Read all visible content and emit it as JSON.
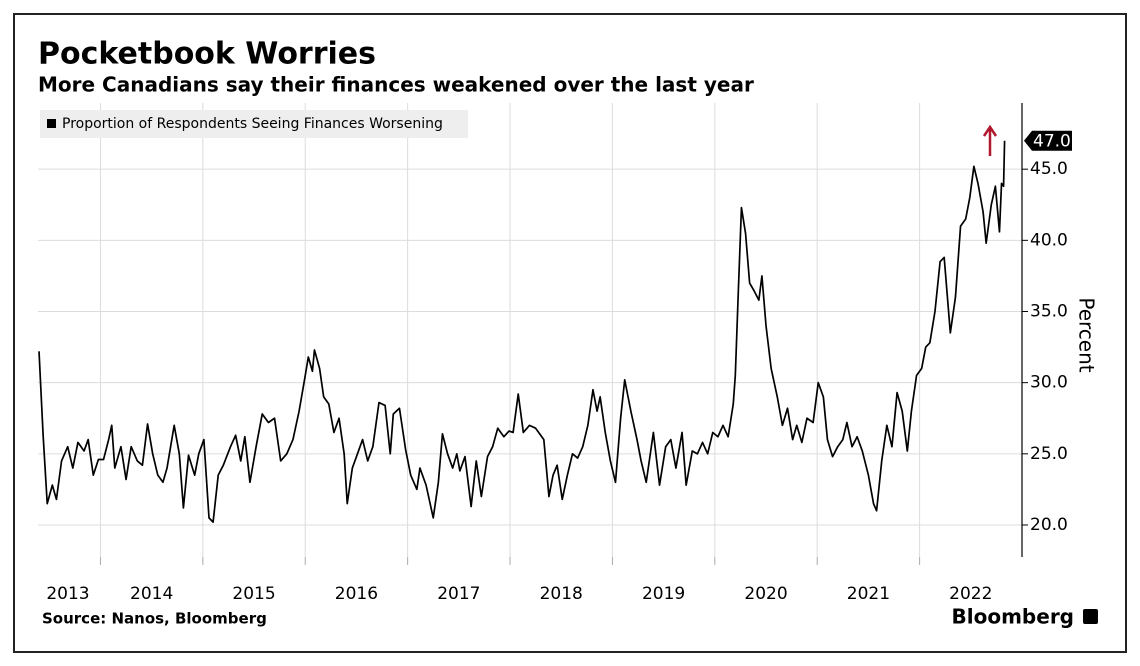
{
  "chart_data": {
    "type": "line",
    "title": "Pocketbook Worries",
    "subtitle": "More Canadians say their finances weakened over the last year",
    "y_label": "Percent",
    "source": "Source: Nanos, Bloomberg",
    "brand": "Bloomberg",
    "x": [
      2013.4,
      2013.44,
      2013.48,
      2013.53,
      2013.57,
      2013.62,
      2013.68,
      2013.73,
      2013.78,
      2013.84,
      2013.88,
      2013.93,
      2013.98,
      2014.03,
      2014.08,
      2014.11,
      2014.14,
      2014.2,
      2014.25,
      2014.3,
      2014.36,
      2014.41,
      2014.46,
      2014.51,
      2014.56,
      2014.61,
      2014.65,
      2014.72,
      2014.77,
      2014.81,
      2014.86,
      2014.92,
      2014.96,
      2015.01,
      2015.06,
      2015.1,
      2015.15,
      2015.2,
      2015.27,
      2015.32,
      2015.37,
      2015.41,
      2015.46,
      2015.52,
      2015.58,
      2015.64,
      2015.7,
      2015.76,
      2015.82,
      2015.88,
      2015.94,
      2016.0,
      2016.03,
      2016.07,
      2016.09,
      2016.14,
      2016.18,
      2016.23,
      2016.28,
      2016.33,
      2016.38,
      2016.41,
      2016.46,
      2016.51,
      2016.56,
      2016.61,
      2016.66,
      2016.72,
      2016.78,
      2016.83,
      2016.86,
      2016.92,
      2016.98,
      2017.03,
      2017.09,
      2017.12,
      2017.18,
      2017.25,
      2017.3,
      2017.34,
      2017.39,
      2017.44,
      2017.48,
      2017.51,
      2017.56,
      2017.62,
      2017.67,
      2017.72,
      2017.78,
      2017.83,
      2017.88,
      2017.94,
      2017.99,
      2018.03,
      2018.08,
      2018.13,
      2018.19,
      2018.25,
      2018.33,
      2018.38,
      2018.42,
      2018.46,
      2018.51,
      2018.56,
      2018.61,
      2018.66,
      2018.71,
      2018.76,
      2018.81,
      2018.85,
      2018.88,
      2018.93,
      2018.98,
      2019.03,
      2019.08,
      2019.12,
      2019.18,
      2019.24,
      2019.28,
      2019.33,
      2019.4,
      2019.46,
      2019.52,
      2019.57,
      2019.62,
      2019.68,
      2019.72,
      2019.78,
      2019.83,
      2019.88,
      2019.93,
      2019.98,
      2020.03,
      2020.08,
      2020.13,
      2020.18,
      2020.2,
      2020.23,
      2020.26,
      2020.3,
      2020.34,
      2020.38,
      2020.43,
      2020.46,
      2020.5,
      2020.55,
      2020.61,
      2020.66,
      2020.71,
      2020.76,
      2020.8,
      2020.85,
      2020.9,
      2020.96,
      2021.01,
      2021.06,
      2021.1,
      2021.15,
      2021.2,
      2021.25,
      2021.29,
      2021.34,
      2021.39,
      2021.44,
      2021.5,
      2021.55,
      2021.58,
      2021.63,
      2021.68,
      2021.73,
      2021.78,
      2021.83,
      2021.88,
      2021.92,
      2021.97,
      2022.02,
      2022.06,
      2022.1,
      2022.15,
      2022.2,
      2022.24,
      2022.3,
      2022.35,
      2022.4,
      2022.45,
      2022.49,
      2022.53,
      2022.57,
      2022.62,
      2022.65,
      2022.7,
      2022.74,
      2022.78,
      2022.8,
      2022.82,
      2022.83
    ],
    "series": [
      {
        "name": "Proportion of Respondents Seeing Finances Worsening",
        "color": "#000000",
        "values": [
          32.2,
          26.3,
          21.5,
          22.8,
          21.8,
          24.5,
          25.5,
          24.0,
          25.8,
          25.2,
          26.0,
          23.5,
          24.6,
          24.6,
          26.0,
          27.0,
          24.0,
          25.5,
          23.2,
          25.5,
          24.5,
          24.2,
          27.1,
          25.0,
          23.5,
          23.0,
          24.0,
          27.0,
          25.0,
          21.2,
          24.9,
          23.5,
          25.0,
          26.0,
          20.5,
          20.2,
          23.5,
          24.2,
          25.5,
          26.3,
          24.5,
          26.2,
          23.0,
          25.5,
          27.8,
          27.2,
          27.5,
          24.5,
          25.0,
          26.0,
          28.0,
          30.5,
          31.8,
          30.8,
          32.3,
          31.0,
          29.0,
          28.5,
          26.5,
          27.5,
          25.0,
          21.5,
          24.0,
          25.0,
          26.0,
          24.5,
          25.5,
          28.6,
          28.4,
          25.0,
          27.8,
          28.2,
          25.3,
          23.5,
          22.5,
          24.0,
          22.8,
          20.5,
          23.0,
          26.4,
          25.0,
          24.0,
          25.0,
          23.8,
          24.8,
          21.3,
          24.5,
          22.0,
          24.8,
          25.5,
          26.8,
          26.2,
          26.6,
          26.5,
          29.2,
          26.5,
          27.0,
          26.8,
          26.0,
          22.0,
          23.5,
          24.2,
          21.8,
          23.5,
          25.0,
          24.7,
          25.5,
          27.0,
          29.5,
          28.0,
          29.0,
          26.5,
          24.5,
          23.0,
          27.5,
          30.2,
          28.0,
          26.0,
          24.5,
          23.0,
          26.5,
          22.8,
          25.5,
          26.0,
          24.0,
          26.5,
          22.8,
          25.2,
          25.0,
          25.8,
          25.0,
          26.5,
          26.2,
          27.0,
          26.2,
          28.5,
          30.5,
          36.5,
          42.3,
          40.5,
          37.0,
          36.5,
          35.8,
          37.5,
          34.0,
          31.0,
          29.0,
          27.0,
          28.2,
          26.0,
          27.0,
          25.8,
          27.5,
          27.2,
          30.0,
          29.0,
          26.0,
          24.8,
          25.5,
          26.0,
          27.2,
          25.5,
          26.2,
          25.2,
          23.5,
          21.5,
          21.0,
          24.5,
          27.0,
          25.5,
          29.3,
          28.0,
          25.2,
          28.0,
          30.5,
          31.0,
          32.5,
          32.8,
          35.0,
          38.5,
          38.8,
          33.5,
          36.0,
          41.0,
          41.5,
          43.0,
          45.2,
          44.0,
          42.0,
          39.8,
          42.5,
          43.8,
          40.6,
          44.0,
          43.8,
          47.0
        ],
        "value_labels": [
          null,
          null,
          null,
          null,
          null,
          null,
          null,
          null,
          null,
          null,
          null,
          null,
          null,
          null,
          null,
          null,
          null,
          null,
          null,
          null,
          null,
          null,
          null,
          null,
          null,
          null,
          null,
          null,
          null,
          null,
          null,
          null,
          null,
          null,
          null,
          null,
          null,
          null,
          null,
          null,
          null,
          null,
          null,
          null,
          null,
          null,
          null,
          null,
          null,
          null,
          null,
          null,
          null,
          null,
          null,
          null,
          null,
          null,
          null,
          null,
          null,
          null,
          null,
          null,
          null,
          null,
          null,
          null,
          null,
          null,
          null,
          null,
          null,
          null,
          null,
          null,
          null,
          null,
          null,
          null,
          null,
          null,
          null,
          null,
          null,
          null,
          null,
          null,
          null,
          null,
          null,
          null,
          null,
          null,
          null,
          null,
          null,
          null,
          null,
          null,
          null,
          null,
          null,
          null,
          null,
          null,
          null,
          null,
          null,
          null,
          null,
          null,
          null,
          null,
          null,
          null,
          null,
          null,
          null,
          null,
          null,
          null,
          null,
          null,
          null,
          null,
          null,
          null,
          null,
          null,
          null,
          null,
          null,
          null,
          null,
          null,
          null,
          null,
          null,
          null,
          null,
          null,
          null,
          null,
          null,
          null,
          null,
          null,
          null,
          null,
          null,
          null,
          null,
          null,
          null,
          null,
          null,
          null,
          null,
          null,
          null,
          null,
          null,
          null,
          null,
          null,
          null,
          null,
          null,
          null,
          null,
          null,
          null,
          null,
          null,
          null,
          null,
          null,
          null,
          null,
          null,
          null,
          null,
          null,
          null,
          null,
          null,
          null,
          null,
          null,
          null,
          null,
          null,
          null,
          null,
          "47.0"
        ]
      }
    ],
    "xlim": [
      2013.39,
      2023.0
    ],
    "xticks": [
      2013,
      2014,
      2015,
      2016,
      2017,
      2018,
      2019,
      2020,
      2021,
      2022
    ],
    "ylim": [
      17.75,
      49.65
    ],
    "yticks": [
      {
        "value": 20,
        "label": "20.0"
      },
      {
        "value": 25,
        "label": "25.0"
      },
      {
        "value": 30,
        "label": "30.0"
      },
      {
        "value": 35,
        "label": "35.0"
      },
      {
        "value": 40,
        "label": "40.0"
      },
      {
        "value": 45,
        "label": "45.0"
      }
    ],
    "grid": true,
    "legend": "upper left"
  }
}
